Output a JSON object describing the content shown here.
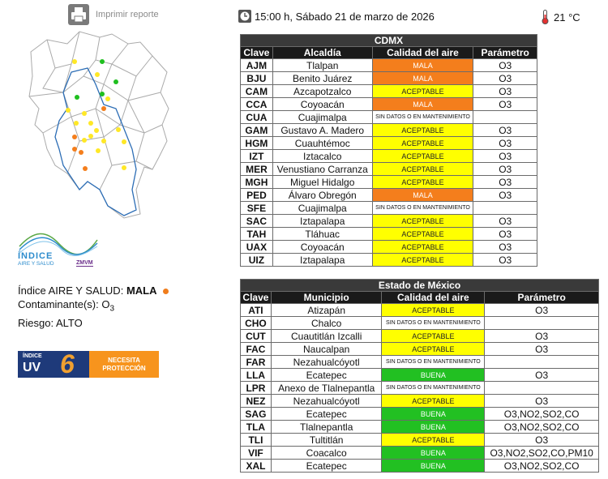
{
  "print": {
    "label": "Imprimir reporte"
  },
  "header": {
    "datetime": "15:00 h, Sábado 21 de marzo de 2026",
    "temperature": "21 °C"
  },
  "logo": {
    "line1": "ÍNDICE",
    "line2": "AIRE Y SALUD",
    "brand": "ZMVM"
  },
  "summary": {
    "index_label": "Índice AIRE Y SALUD:",
    "index_value": "MALA",
    "pollutant_label": "Contaminante(s):",
    "pollutant_main": "O",
    "pollutant_sub": "3",
    "risk_label": "Riesgo:",
    "risk_value": "ALTO"
  },
  "uv": {
    "indice": "ÍNDICE",
    "uv": "UV",
    "value": "6",
    "message_line1": "NECESITA",
    "message_line2": "PROTECCIÓN"
  },
  "cdmx": {
    "title": "CDMX",
    "headers": [
      "Clave",
      "Alcaldía",
      "Calidad del aire",
      "Parámetro"
    ],
    "rows": [
      {
        "code": "AJM",
        "name": "Tlalpan",
        "quality": "MALA",
        "param": "O3"
      },
      {
        "code": "BJU",
        "name": "Benito Juárez",
        "quality": "MALA",
        "param": "O3"
      },
      {
        "code": "CAM",
        "name": "Azcapotzalco",
        "quality": "ACEPTABLE",
        "param": "O3"
      },
      {
        "code": "CCA",
        "name": "Coyoacán",
        "quality": "MALA",
        "param": "O3"
      },
      {
        "code": "CUA",
        "name": "Cuajimalpa",
        "quality": "SIN DATOS O EN MANTENIMIENTO",
        "param": ""
      },
      {
        "code": "GAM",
        "name": "Gustavo A. Madero",
        "quality": "ACEPTABLE",
        "param": "O3"
      },
      {
        "code": "HGM",
        "name": "Cuauhtémoc",
        "quality": "ACEPTABLE",
        "param": "O3"
      },
      {
        "code": "IZT",
        "name": "Iztacalco",
        "quality": "ACEPTABLE",
        "param": "O3"
      },
      {
        "code": "MER",
        "name": "Venustiano Carranza",
        "quality": "ACEPTABLE",
        "param": "O3"
      },
      {
        "code": "MGH",
        "name": "Miguel Hidalgo",
        "quality": "ACEPTABLE",
        "param": "O3"
      },
      {
        "code": "PED",
        "name": "Álvaro Obregón",
        "quality": "MALA",
        "param": "O3"
      },
      {
        "code": "SFE",
        "name": "Cuajimalpa",
        "quality": "SIN DATOS O EN MANTENIMIENTO",
        "param": ""
      },
      {
        "code": "SAC",
        "name": "Iztapalapa",
        "quality": "ACEPTABLE",
        "param": "O3"
      },
      {
        "code": "TAH",
        "name": "Tláhuac",
        "quality": "ACEPTABLE",
        "param": "O3"
      },
      {
        "code": "UAX",
        "name": "Coyoacán",
        "quality": "ACEPTABLE",
        "param": "O3"
      },
      {
        "code": "UIZ",
        "name": "Iztapalapa",
        "quality": "ACEPTABLE",
        "param": "O3"
      }
    ]
  },
  "edomex": {
    "title": "Estado de México",
    "headers": [
      "Clave",
      "Municipio",
      "Calidad del aire",
      "Parámetro"
    ],
    "rows": [
      {
        "code": "ATI",
        "name": "Atizapán",
        "quality": "ACEPTABLE",
        "param": "O3"
      },
      {
        "code": "CHO",
        "name": "Chalco",
        "quality": "SIN DATOS O EN MANTENIMIENTO",
        "param": ""
      },
      {
        "code": "CUT",
        "name": "Cuautitlán Izcalli",
        "quality": "ACEPTABLE",
        "param": "O3"
      },
      {
        "code": "FAC",
        "name": "Naucalpan",
        "quality": "ACEPTABLE",
        "param": "O3"
      },
      {
        "code": "FAR",
        "name": "Nezahualcóyotl",
        "quality": "SIN DATOS O EN MANTENIMIENTO",
        "param": ""
      },
      {
        "code": "LLA",
        "name": "Ecatepec",
        "quality": "BUENA",
        "param": "O3"
      },
      {
        "code": "LPR",
        "name": "Anexo de Tlalnepantla",
        "quality": "SIN DATOS O EN MANTENIMIENTO",
        "param": ""
      },
      {
        "code": "NEZ",
        "name": "Nezahualcóyotl",
        "quality": "ACEPTABLE",
        "param": "O3"
      },
      {
        "code": "SAG",
        "name": "Ecatepec",
        "quality": "BUENA",
        "param": "O3,NO2,SO2,CO"
      },
      {
        "code": "TLA",
        "name": "Tlalnepantla",
        "quality": "BUENA",
        "param": "O3,NO2,SO2,CO"
      },
      {
        "code": "TLI",
        "name": "Tultitlán",
        "quality": "ACEPTABLE",
        "param": "O3"
      },
      {
        "code": "VIF",
        "name": "Coacalco",
        "quality": "BUENA",
        "param": "O3,NO2,SO2,CO,PM10"
      },
      {
        "code": "XAL",
        "name": "Ecatepec",
        "quality": "BUENA",
        "param": "O3,NO2,SO2,CO"
      }
    ]
  }
}
